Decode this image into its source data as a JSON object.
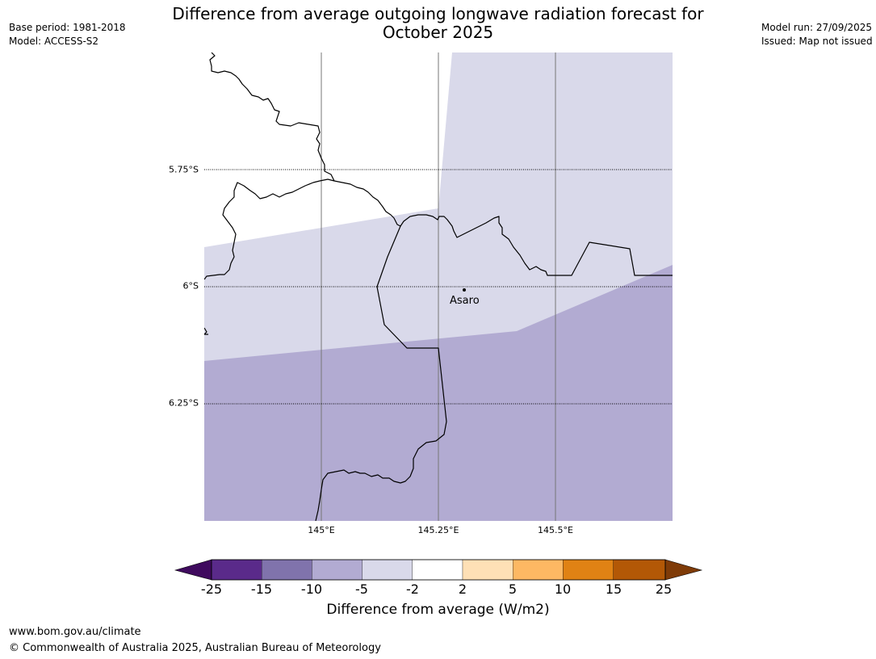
{
  "header": {
    "title_line1": "Difference from average outgoing longwave radiation forecast for",
    "title_line2": "October 2025",
    "base_period": "Base period: 1981-2018",
    "model": "Model: ACCESS-S2",
    "model_run": "Model run: 27/09/2025",
    "issued": "Issued: Map not issued"
  },
  "map": {
    "lat_labels": [
      "5.75°S",
      "6°S",
      "6.25°S"
    ],
    "lon_labels": [
      "145°E",
      "145.25°E",
      "145.5°E"
    ],
    "place": {
      "name": "Asaro"
    },
    "fill_colors": {
      "band_-5_-2": "#d9d9ea",
      "band_-10_-5": "#b2abd2"
    }
  },
  "colorbar": {
    "ticks": [
      "-25",
      "-15",
      "-10",
      "-5",
      "-2",
      "2",
      "5",
      "10",
      "15",
      "25"
    ],
    "colors": [
      "#3f0a5e",
      "#5a2a8a",
      "#8073ac",
      "#b2abd2",
      "#d9d9ea",
      "#ffffff",
      "#fee0b6",
      "#fdb863",
      "#e08214",
      "#b35806",
      "#7f3b08"
    ],
    "label": "Difference from average (W/m2)"
  },
  "footer": {
    "url": "www.bom.gov.au/climate",
    "copyright": "© Commonwealth of Australia 2025, Australian Bureau of Meteorology"
  }
}
